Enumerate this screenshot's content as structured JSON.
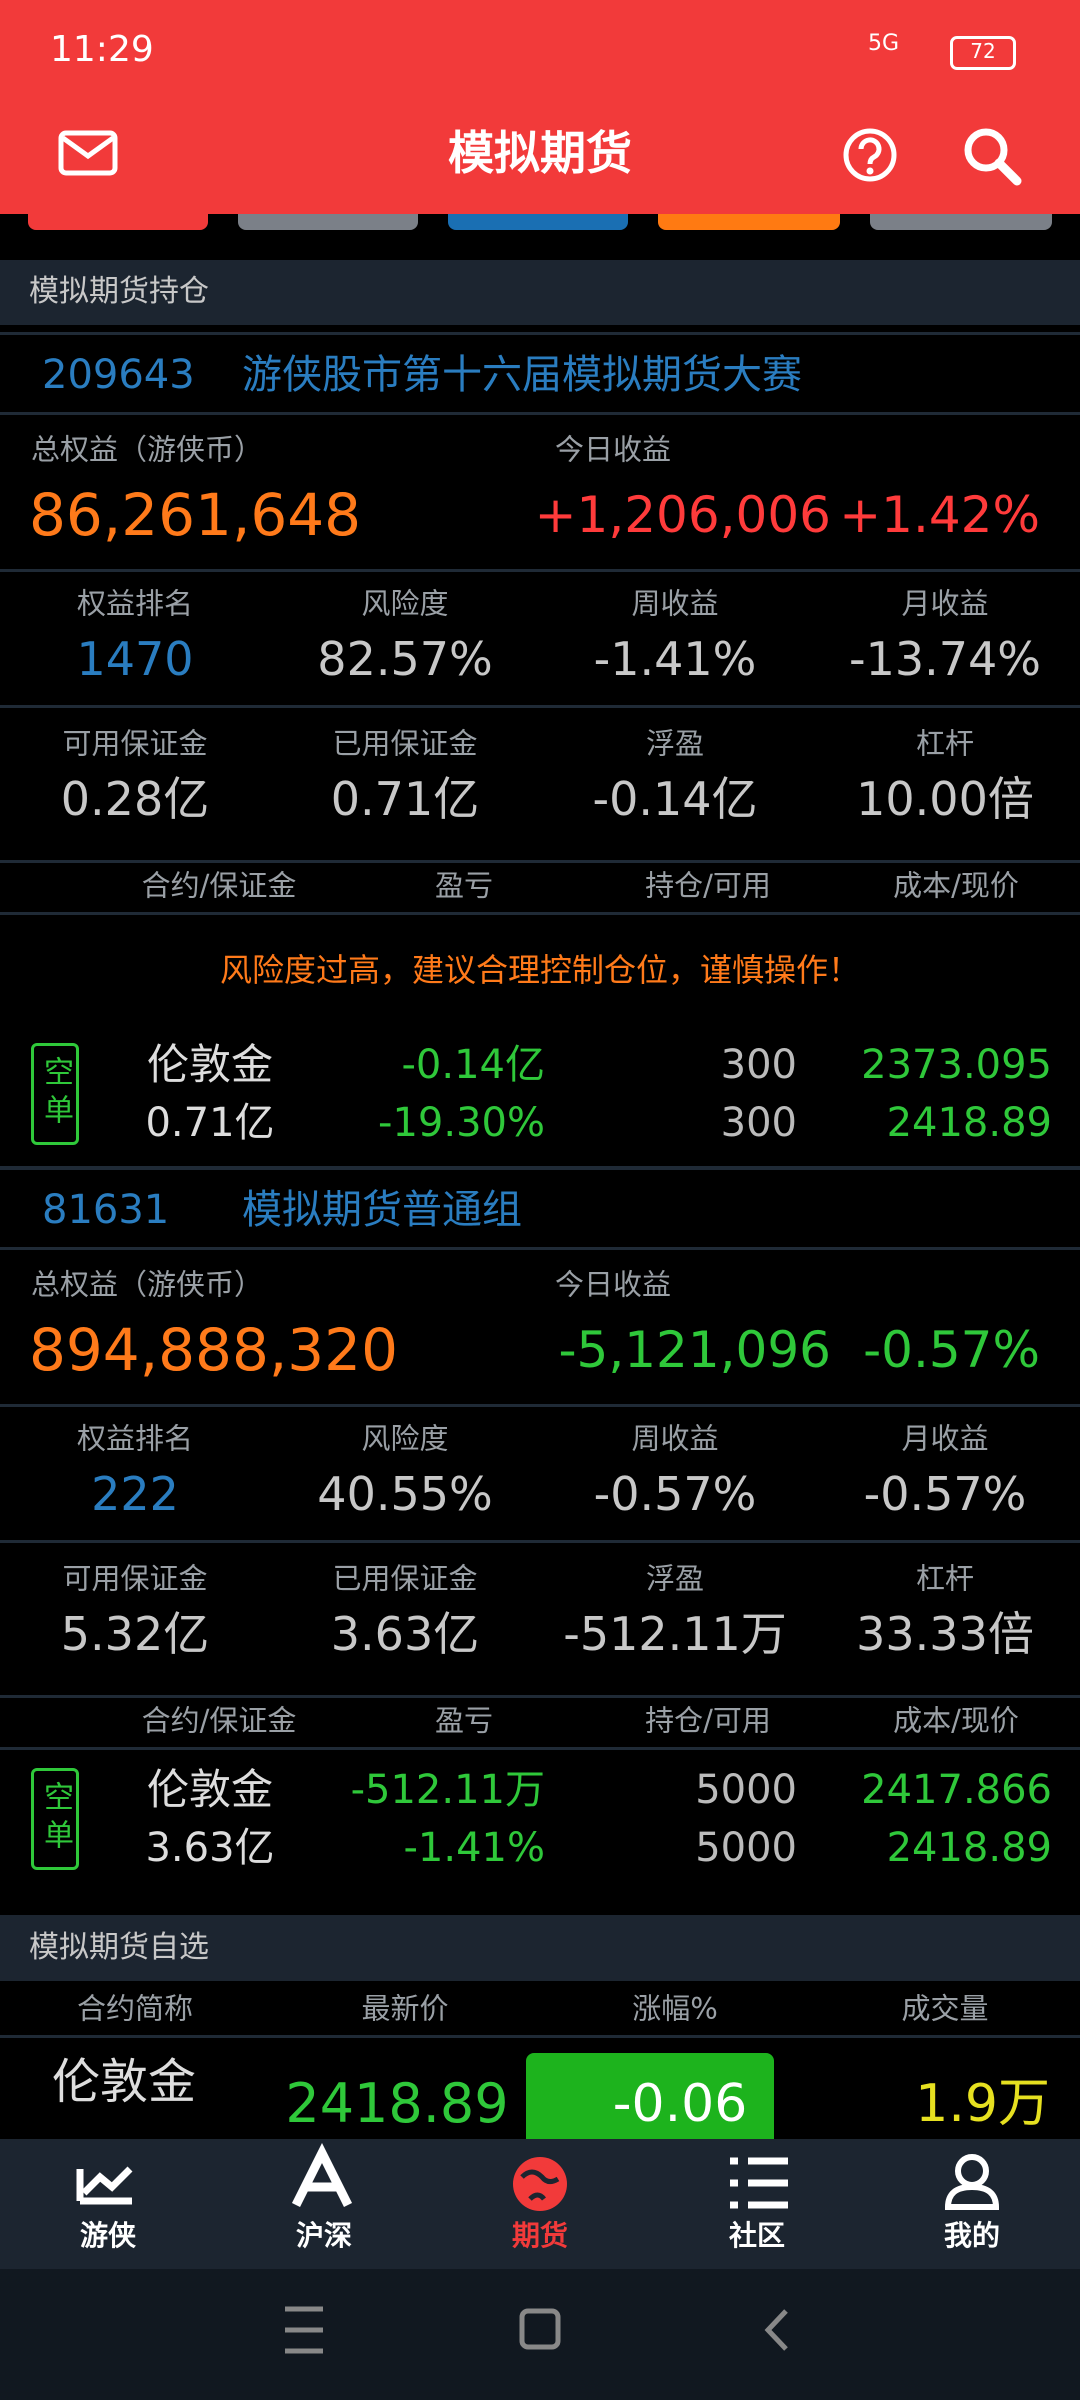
{
  "status_bar": {
    "time": "11:29",
    "network": "5G",
    "battery": "72"
  },
  "header": {
    "title": "模拟期货"
  },
  "positions_section": {
    "title": "模拟期货持仓"
  },
  "accounts": [
    {
      "id": "209643",
      "name": "游侠股市第十六届模拟期货大赛",
      "equity_label": "总权益（游侠币）",
      "equity": "86,261,648",
      "today_label": "今日收益",
      "today_change": "+1,206,006",
      "today_pct": "+1.42%",
      "stats": [
        {
          "label": "权益排名",
          "value": "1470"
        },
        {
          "label": "风险度",
          "value": "82.57%"
        },
        {
          "label": "周收益",
          "value": "-1.41%"
        },
        {
          "label": "月收益",
          "value": "-13.74%"
        }
      ],
      "margin_stats": [
        {
          "label": "可用保证金",
          "value": "0.28亿"
        },
        {
          "label": "已用保证金",
          "value": "0.71亿"
        },
        {
          "label": "浮盈",
          "value": "-0.14亿"
        },
        {
          "label": "杠杆",
          "value": "10.00倍"
        }
      ],
      "table_header": [
        "合约/保证金",
        "盈亏",
        "持仓/可用",
        "成本/现价"
      ],
      "warning": "风险度过高，建议合理控制仓位，谨慎操作！",
      "holdings": [
        {
          "side": "空单",
          "name": "伦敦金",
          "margin": "0.71亿",
          "pnl": "-0.14亿",
          "pnl_pct": "-19.30%",
          "position": "300",
          "available": "300",
          "cost": "2373.095",
          "price": "2418.89"
        }
      ]
    },
    {
      "id": "81631",
      "name": "模拟期货普通组",
      "equity_label": "总权益（游侠币）",
      "equity": "894,888,320",
      "today_label": "今日收益",
      "today_change": "-5,121,096",
      "today_pct": "-0.57%",
      "stats": [
        {
          "label": "权益排名",
          "value": "222"
        },
        {
          "label": "风险度",
          "value": "40.55%"
        },
        {
          "label": "周收益",
          "value": "-0.57%"
        },
        {
          "label": "月收益",
          "value": "-0.57%"
        }
      ],
      "margin_stats": [
        {
          "label": "可用保证金",
          "value": "5.32亿"
        },
        {
          "label": "已用保证金",
          "value": "3.63亿"
        },
        {
          "label": "浮盈",
          "value": "-512.11万"
        },
        {
          "label": "杠杆",
          "value": "33.33倍"
        }
      ],
      "table_header": [
        "合约/保证金",
        "盈亏",
        "持仓/可用",
        "成本/现价"
      ],
      "holdings": [
        {
          "side": "空单",
          "name": "伦敦金",
          "margin": "3.63亿",
          "pnl": "-512.11万",
          "pnl_pct": "-1.41%",
          "position": "5000",
          "available": "5000",
          "cost": "2417.866",
          "price": "2418.89"
        }
      ]
    }
  ],
  "watchlist": {
    "title": "模拟期货自选",
    "columns": [
      "合约简称",
      "最新价",
      "涨幅%",
      "成交量"
    ],
    "rows": [
      {
        "name": "伦敦金",
        "price": "2418.89",
        "change": "-0.06",
        "volume": "1.9万"
      }
    ]
  },
  "bottom_nav": {
    "items": [
      "游侠",
      "沪深",
      "期货",
      "社区",
      "我的"
    ],
    "active": 2
  }
}
